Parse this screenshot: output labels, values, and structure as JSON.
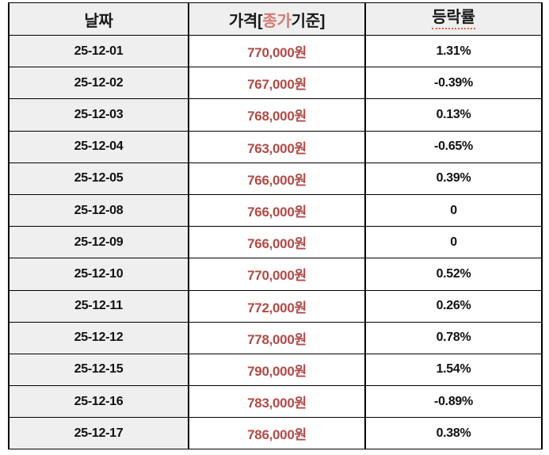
{
  "header": {
    "date": "날짜",
    "price_prefix": "가격[",
    "price_highlight": "종가",
    "price_suffix": "기준]",
    "change": "등락률"
  },
  "rows": [
    {
      "date": "25-12-01",
      "price": "770,000원",
      "change": "1.31%"
    },
    {
      "date": "25-12-02",
      "price": "767,000원",
      "change": "-0.39%"
    },
    {
      "date": "25-12-03",
      "price": "768,000원",
      "change": "0.13%"
    },
    {
      "date": "25-12-04",
      "price": "763,000원",
      "change": "-0.65%"
    },
    {
      "date": "25-12-05",
      "price": "766,000원",
      "change": "0.39%"
    },
    {
      "date": "25-12-08",
      "price": "766,000원",
      "change": "0"
    },
    {
      "date": "25-12-09",
      "price": "766,000원",
      "change": "0"
    },
    {
      "date": "25-12-10",
      "price": "770,000원",
      "change": "0.52%"
    },
    {
      "date": "25-12-11",
      "price": "772,000원",
      "change": "0.26%"
    },
    {
      "date": "25-12-12",
      "price": "778,000원",
      "change": "0.78%"
    },
    {
      "date": "25-12-15",
      "price": "790,000원",
      "change": "1.54%"
    },
    {
      "date": "25-12-16",
      "price": "783,000원",
      "change": "-0.89%"
    },
    {
      "date": "25-12-17",
      "price": "786,000원",
      "change": "0.38%"
    }
  ],
  "chart_data": {
    "type": "table",
    "title": "가격[종가기준] 등락률 표",
    "columns": [
      "날짜",
      "가격[종가기준]",
      "등락률"
    ],
    "x": [
      "25-12-01",
      "25-12-02",
      "25-12-03",
      "25-12-04",
      "25-12-05",
      "25-12-08",
      "25-12-09",
      "25-12-10",
      "25-12-11",
      "25-12-12",
      "25-12-15",
      "25-12-16",
      "25-12-17"
    ],
    "series": [
      {
        "name": "가격(원)",
        "values": [
          770000,
          767000,
          768000,
          763000,
          766000,
          766000,
          766000,
          770000,
          772000,
          778000,
          790000,
          783000,
          786000
        ]
      },
      {
        "name": "등락률(%)",
        "values": [
          1.31,
          -0.39,
          0.13,
          -0.65,
          0.39,
          0,
          0,
          0.52,
          0.26,
          0.78,
          1.54,
          -0.89,
          0.38
        ]
      }
    ]
  },
  "colors": {
    "price_text": "#b04a47",
    "header_highlight": "#d27b73",
    "change_underline": "#e2663e",
    "header_bg": "#efefef",
    "date_col_bg": "#efefef",
    "border": "#000000",
    "text": "#111111",
    "page_bg": "#ffffff"
  }
}
